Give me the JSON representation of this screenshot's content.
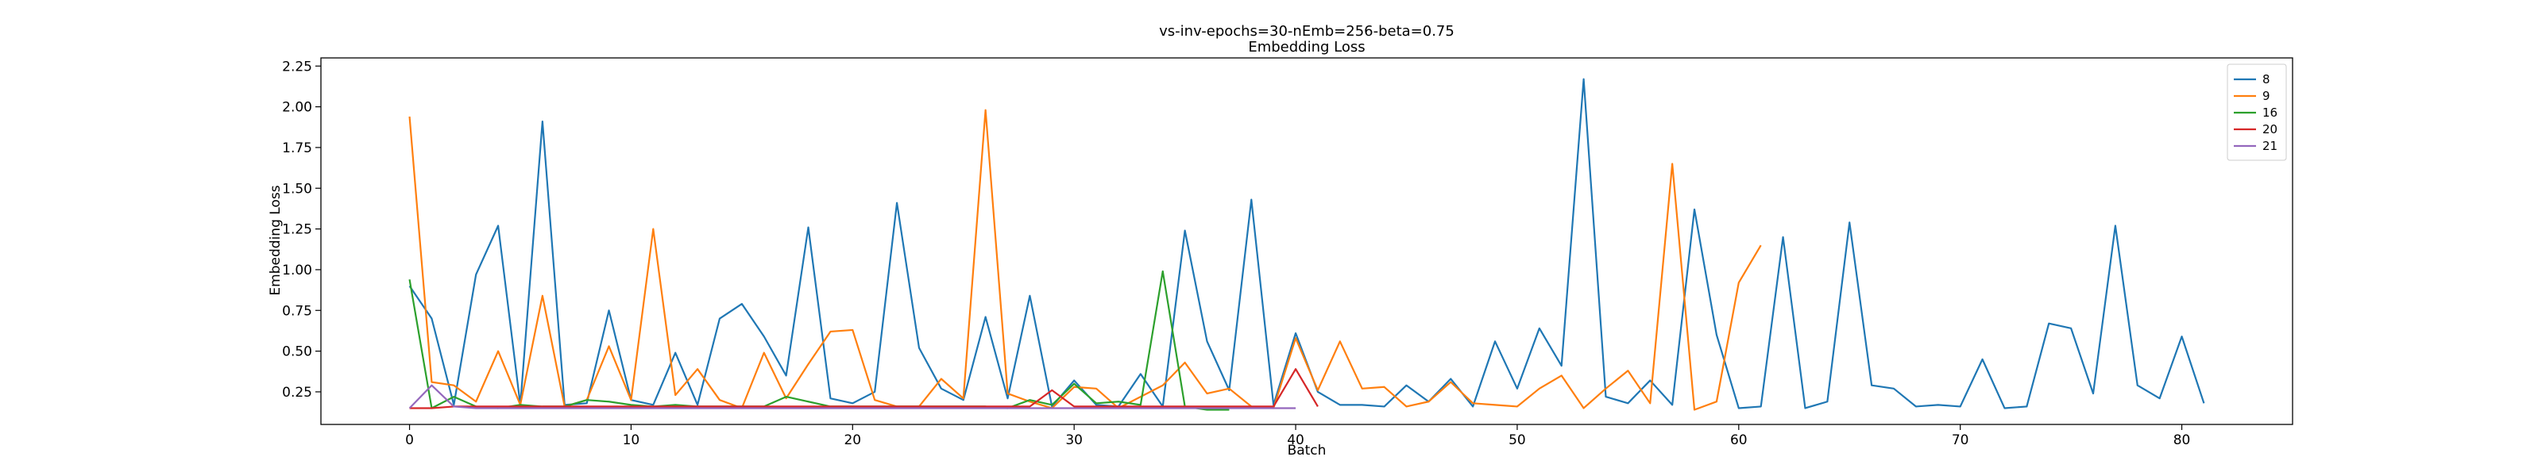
{
  "chart_data": {
    "type": "line",
    "title": "vs-inv-epochs=30-nEmb=256-beta=0.75",
    "subtitle": "Embedding Loss",
    "xlabel": "Batch",
    "ylabel": "Embedding Loss",
    "xlim": [
      -4,
      85
    ],
    "ylim": [
      0.05,
      2.3
    ],
    "xticks": [
      0,
      10,
      20,
      30,
      40,
      50,
      60,
      70,
      80
    ],
    "yticks": [
      0.25,
      0.5,
      0.75,
      1.0,
      1.25,
      1.5,
      1.75,
      2.0,
      2.25
    ],
    "ytick_labels": [
      "0.25",
      "0.50",
      "0.75",
      "1.00",
      "1.25",
      "1.50",
      "1.75",
      "2.00",
      "2.25"
    ],
    "grid": false,
    "legend_position": "top-right",
    "series": [
      {
        "name": "8",
        "color": "#1f77b4",
        "values": [
          0.9,
          0.7,
          0.17,
          0.97,
          1.27,
          0.17,
          1.91,
          0.17,
          0.18,
          0.75,
          0.2,
          0.17,
          0.49,
          0.17,
          0.7,
          0.79,
          0.59,
          0.35,
          1.26,
          0.21,
          0.18,
          0.25,
          1.41,
          0.52,
          0.27,
          0.2,
          0.71,
          0.21,
          0.84,
          0.16,
          0.32,
          0.17,
          0.16,
          0.36,
          0.16,
          1.24,
          0.56,
          0.26,
          1.43,
          0.17,
          0.61,
          0.25,
          0.17,
          0.17,
          0.16,
          0.29,
          0.19,
          0.33,
          0.16,
          0.56,
          0.27,
          0.64,
          0.41,
          2.17,
          0.22,
          0.18,
          0.32,
          0.17,
          1.37,
          0.6,
          0.15,
          0.16,
          1.2,
          0.15,
          0.19,
          1.29,
          0.29,
          0.27,
          0.16,
          0.17,
          0.16,
          0.45,
          0.15,
          0.16,
          0.67,
          0.64,
          0.24,
          1.27,
          0.29,
          0.21,
          0.59,
          0.18
        ]
      },
      {
        "name": "9",
        "color": "#ff7f0e",
        "values": [
          1.94,
          0.31,
          0.29,
          0.19,
          0.5,
          0.17,
          0.84,
          0.16,
          0.2,
          0.53,
          0.2,
          1.25,
          0.23,
          0.39,
          0.2,
          0.15,
          0.49,
          0.21,
          0.42,
          0.62,
          0.63,
          0.2,
          0.16,
          0.16,
          0.33,
          0.21,
          1.98,
          0.24,
          0.19,
          0.15,
          0.28,
          0.27,
          0.15,
          0.22,
          0.29,
          0.43,
          0.24,
          0.27,
          0.16,
          0.15,
          0.58,
          0.26,
          0.56,
          0.27,
          0.28,
          0.16,
          0.19,
          0.31,
          0.18,
          0.17,
          0.16,
          0.27,
          0.35,
          0.15,
          0.27,
          0.38,
          0.18,
          1.65,
          0.14,
          0.19,
          0.92,
          1.15
        ]
      },
      {
        "name": "16",
        "color": "#2ca02c",
        "values": [
          0.94,
          0.15,
          0.22,
          0.16,
          0.15,
          0.17,
          0.16,
          0.16,
          0.2,
          0.19,
          0.17,
          0.16,
          0.17,
          0.16,
          0.16,
          0.16,
          0.16,
          0.22,
          0.19,
          0.16,
          0.16,
          0.16,
          0.16,
          0.16,
          0.16,
          0.16,
          0.16,
          0.15,
          0.2,
          0.17,
          0.3,
          0.18,
          0.19,
          0.17,
          0.99,
          0.16,
          0.14,
          0.14
        ]
      },
      {
        "name": "20",
        "color": "#d62728",
        "values": [
          0.15,
          0.15,
          0.16,
          0.16,
          0.16,
          0.16,
          0.16,
          0.16,
          0.16,
          0.16,
          0.16,
          0.16,
          0.16,
          0.16,
          0.16,
          0.16,
          0.16,
          0.16,
          0.16,
          0.16,
          0.16,
          0.16,
          0.16,
          0.16,
          0.16,
          0.16,
          0.16,
          0.16,
          0.16,
          0.26,
          0.16,
          0.16,
          0.16,
          0.16,
          0.16,
          0.16,
          0.16,
          0.16,
          0.16,
          0.16,
          0.39,
          0.16
        ]
      },
      {
        "name": "21",
        "color": "#9467bd",
        "values": [
          0.15,
          0.29,
          0.16,
          0.15,
          0.15,
          0.15,
          0.15,
          0.15,
          0.15,
          0.15,
          0.15,
          0.15,
          0.15,
          0.15,
          0.15,
          0.15,
          0.15,
          0.15,
          0.15,
          0.15,
          0.15,
          0.15,
          0.15,
          0.15,
          0.15,
          0.15,
          0.15,
          0.15,
          0.15,
          0.15,
          0.15,
          0.15,
          0.15,
          0.15,
          0.15,
          0.15,
          0.15,
          0.15,
          0.15,
          0.15,
          0.15
        ]
      }
    ]
  }
}
